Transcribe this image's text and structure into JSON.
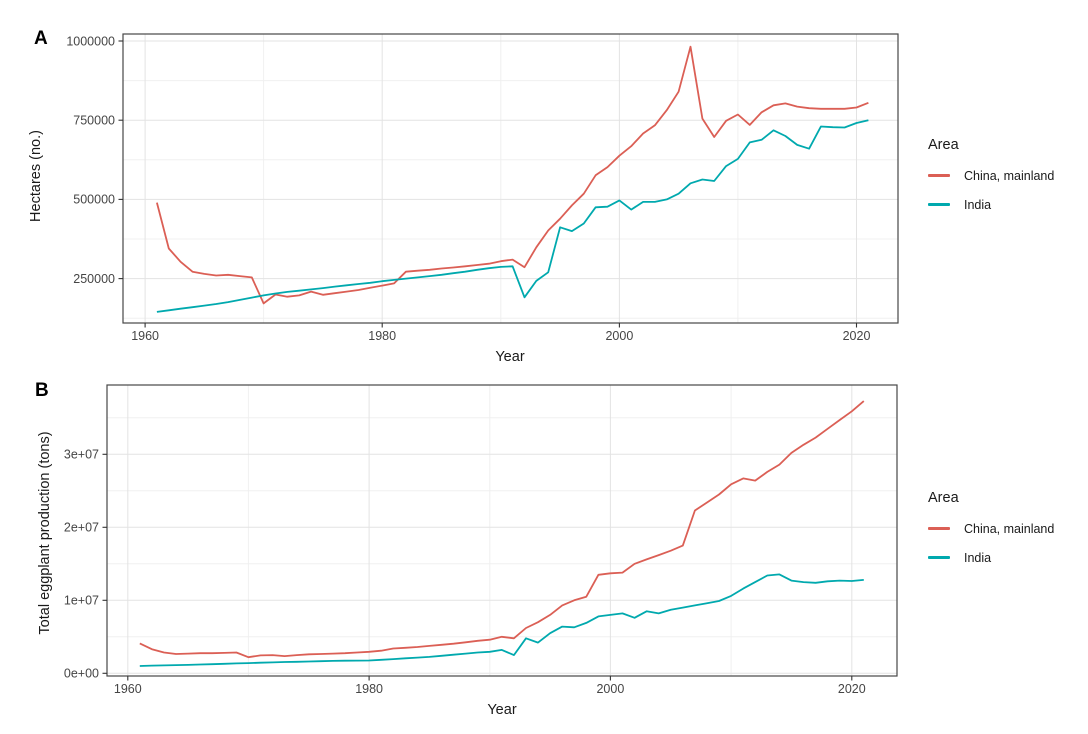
{
  "figure": {
    "background": "#ffffff"
  },
  "colors": {
    "china": "#DB5F55",
    "india": "#00A9AE",
    "grid_major": "#E3E3E3",
    "grid_minor": "#F0F0F0",
    "panel_border": "#474747",
    "tick": "#333333",
    "tick_label": "#454545",
    "text": "#1a1a1a"
  },
  "legend": {
    "title": "Area",
    "items": [
      {
        "label": "China, mainland",
        "color": "#DB5F55"
      },
      {
        "label": "India",
        "color": "#00A9AE"
      }
    ]
  },
  "chart_data": [
    {
      "type": "line",
      "panel_label": "A",
      "xlabel": "Year",
      "ylabel": "Hectares (no.)",
      "legend_position": "right",
      "grid": "major+minor",
      "xlim": [
        1958.14,
        2023.5
      ],
      "ylim": [
        110000,
        1022000
      ],
      "x_ticks": [
        {
          "value": 1960,
          "label": "1960"
        },
        {
          "value": 1980,
          "label": "1980"
        },
        {
          "value": 2000,
          "label": "2000"
        },
        {
          "value": 2020,
          "label": "2020"
        }
      ],
      "x_minor": [
        1970,
        1990,
        2010
      ],
      "y_ticks": [
        {
          "value": 250000,
          "label": "250000"
        },
        {
          "value": 500000,
          "label": "500000"
        },
        {
          "value": 750000,
          "label": "750000"
        },
        {
          "value": 1000000,
          "label": "1000000"
        }
      ],
      "y_minor": [
        125000,
        375000,
        625000,
        875000
      ],
      "x": [
        1961,
        1962,
        1963,
        1964,
        1965,
        1966,
        1967,
        1968,
        1969,
        1970,
        1971,
        1972,
        1973,
        1974,
        1975,
        1976,
        1977,
        1978,
        1979,
        1980,
        1981,
        1982,
        1983,
        1984,
        1985,
        1986,
        1987,
        1988,
        1989,
        1990,
        1991,
        1992,
        1993,
        1994,
        1995,
        1996,
        1997,
        1998,
        1999,
        2000,
        2001,
        2002,
        2003,
        2004,
        2005,
        2006,
        2007,
        2008,
        2009,
        2010,
        2011,
        2012,
        2013,
        2014,
        2015,
        2016,
        2017,
        2018,
        2019,
        2020,
        2021
      ],
      "series": [
        {
          "name": "China, mainland",
          "color": "#DB5F55",
          "values": [
            490000,
            345000,
            303000,
            272000,
            265000,
            260000,
            262000,
            258000,
            254000,
            172000,
            200000,
            193000,
            197000,
            209000,
            199000,
            204000,
            209000,
            214000,
            221000,
            228000,
            235000,
            272000,
            275000,
            278000,
            282000,
            285000,
            289000,
            293000,
            297000,
            305000,
            310000,
            286000,
            349000,
            402000,
            439000,
            481000,
            518000,
            576000,
            602000,
            638000,
            668000,
            708000,
            734000,
            782000,
            840000,
            982000,
            755000,
            697000,
            748000,
            768000,
            735000,
            775000,
            797000,
            803000,
            793000,
            788000,
            786000,
            786000,
            786000,
            790000,
            805000
          ]
        },
        {
          "name": "India",
          "color": "#00A9AE",
          "values": [
            145000,
            150000,
            155000,
            160000,
            165000,
            170000,
            176000,
            183000,
            190000,
            197000,
            203000,
            208000,
            212000,
            216000,
            220000,
            225000,
            229000,
            233000,
            237000,
            242000,
            246000,
            250000,
            254000,
            258000,
            262000,
            267000,
            272000,
            278000,
            283000,
            287000,
            289000,
            191000,
            243000,
            270000,
            412000,
            400000,
            424000,
            475000,
            477000,
            497000,
            468000,
            492000,
            492000,
            500000,
            518000,
            551000,
            563000,
            558000,
            605000,
            628000,
            680000,
            688000,
            718000,
            700000,
            672000,
            660000,
            730000,
            728000,
            727000,
            741000,
            750000
          ]
        }
      ]
    },
    {
      "type": "line",
      "panel_label": "B",
      "xlabel": "Year",
      "ylabel": "Total eggplant production (tons)",
      "legend_position": "right",
      "grid": "major+minor",
      "xlim": [
        1958.28,
        2023.75
      ],
      "ylim": [
        -370000,
        39500000
      ],
      "x_ticks": [
        {
          "value": 1960,
          "label": "1960"
        },
        {
          "value": 1980,
          "label": "1980"
        },
        {
          "value": 2000,
          "label": "2000"
        },
        {
          "value": 2020,
          "label": "2020"
        }
      ],
      "x_minor": [
        1970,
        1990,
        2010
      ],
      "y_ticks": [
        {
          "value": 0,
          "label": "0e+00"
        },
        {
          "value": 10000000,
          "label": "1e+07"
        },
        {
          "value": 20000000,
          "label": "2e+07"
        },
        {
          "value": 30000000,
          "label": "3e+07"
        }
      ],
      "y_minor": [
        5000000,
        15000000,
        25000000,
        35000000
      ],
      "x": [
        1961,
        1962,
        1963,
        1964,
        1965,
        1966,
        1967,
        1968,
        1969,
        1970,
        1971,
        1972,
        1973,
        1974,
        1975,
        1976,
        1977,
        1978,
        1979,
        1980,
        1981,
        1982,
        1983,
        1984,
        1985,
        1986,
        1987,
        1988,
        1989,
        1990,
        1991,
        1992,
        1993,
        1994,
        1995,
        1996,
        1997,
        1998,
        1999,
        2000,
        2001,
        2002,
        2003,
        2004,
        2005,
        2006,
        2007,
        2008,
        2009,
        2010,
        2011,
        2012,
        2013,
        2014,
        2015,
        2016,
        2017,
        2018,
        2019,
        2020,
        2021
      ],
      "series": [
        {
          "name": "China, mainland",
          "color": "#DB5F55",
          "values": [
            4100000,
            3300000,
            2850000,
            2650000,
            2700000,
            2750000,
            2750000,
            2800000,
            2850000,
            2200000,
            2450000,
            2500000,
            2350000,
            2500000,
            2600000,
            2650000,
            2700000,
            2750000,
            2850000,
            2950000,
            3100000,
            3400000,
            3500000,
            3600000,
            3750000,
            3900000,
            4050000,
            4250000,
            4450000,
            4600000,
            5000000,
            4800000,
            6200000,
            7000000,
            8000000,
            9300000,
            10000000,
            10500000,
            13500000,
            13700000,
            13800000,
            15000000,
            15600000,
            16200000,
            16800000,
            17500000,
            22300000,
            23400000,
            24500000,
            25900000,
            26700000,
            26400000,
            27600000,
            28600000,
            30200000,
            31300000,
            32300000,
            33500000,
            34700000,
            35900000,
            37300000
          ]
        },
        {
          "name": "India",
          "color": "#00A9AE",
          "values": [
            1000000,
            1050000,
            1080000,
            1120000,
            1150000,
            1200000,
            1250000,
            1300000,
            1350000,
            1400000,
            1450000,
            1500000,
            1550000,
            1580000,
            1620000,
            1660000,
            1700000,
            1720000,
            1740000,
            1760000,
            1850000,
            1950000,
            2050000,
            2150000,
            2250000,
            2400000,
            2550000,
            2700000,
            2850000,
            2950000,
            3200000,
            2500000,
            4800000,
            4200000,
            5500000,
            6400000,
            6300000,
            6900000,
            7800000,
            8000000,
            8200000,
            7600000,
            8500000,
            8200000,
            8700000,
            9000000,
            9300000,
            9600000,
            9900000,
            10600000,
            11600000,
            12500000,
            13400000,
            13550000,
            12700000,
            12500000,
            12400000,
            12600000,
            12700000,
            12640000,
            12800000
          ]
        }
      ]
    }
  ]
}
